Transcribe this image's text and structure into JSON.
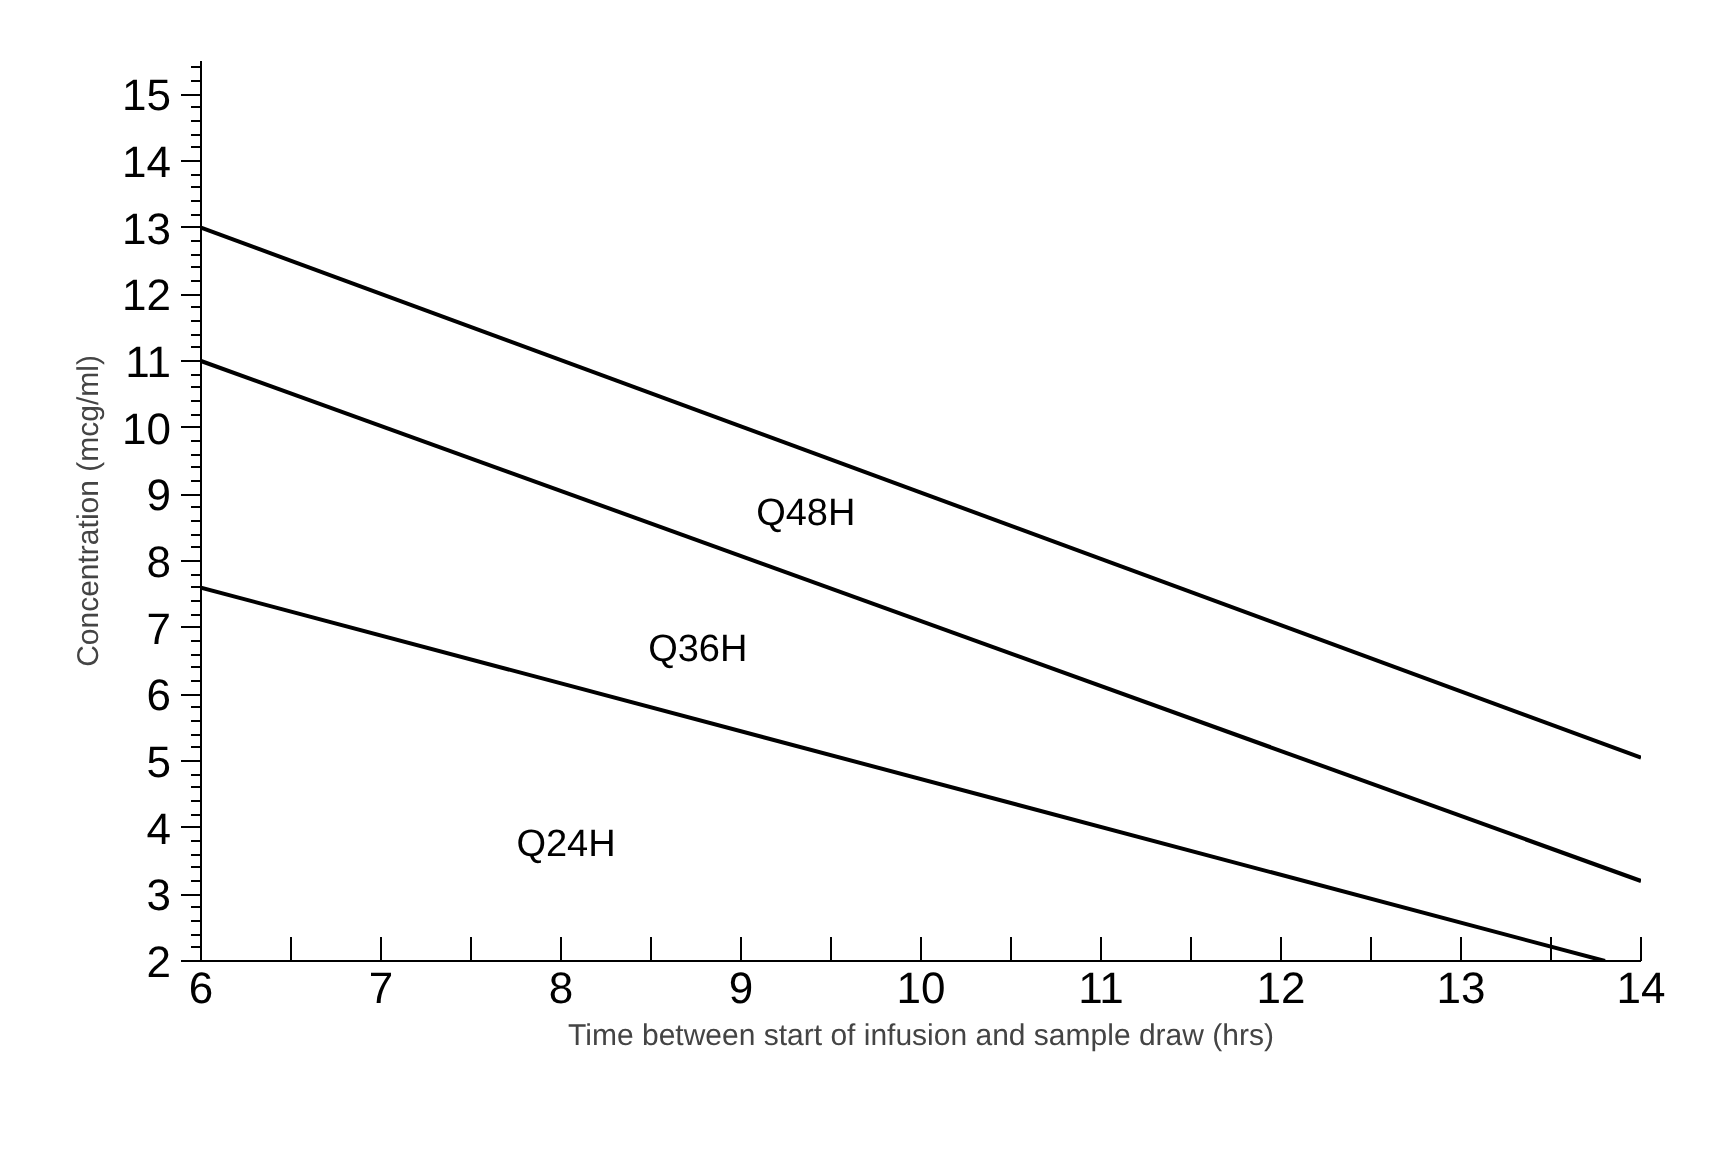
{
  "chart_data": {
    "type": "line",
    "xlabel": "Time between start of infusion and sample draw (hrs)",
    "ylabel": "Concentration (mcg/ml)",
    "series": [
      {
        "color": "#000000",
        "x": [
          6,
          14
        ],
        "values": [
          13,
          5.05
        ]
      },
      {
        "color": "#000000",
        "x": [
          6,
          14
        ],
        "values": [
          11,
          3.2
        ]
      },
      {
        "color": "#000000",
        "x": [
          6,
          13.8
        ],
        "values": [
          7.6,
          2
        ]
      }
    ],
    "annotations": [
      "Q48H",
      "Q36H",
      "Q24H"
    ],
    "xlim": [
      6,
      14
    ],
    "ylim": [
      2,
      15.5
    ],
    "xticks": [
      6,
      {
        "value": 6.5,
        "label": null
      },
      7,
      {
        "value": 7.5,
        "label": null
      },
      8,
      {
        "value": 8.5,
        "label": null
      },
      9,
      {
        "value": 9.5,
        "label": null
      },
      10,
      {
        "value": 10.5,
        "label": null
      },
      11,
      {
        "value": 11.5,
        "label": null
      },
      12,
      {
        "value": 12.5,
        "label": null
      },
      13,
      {
        "value": 13.5,
        "label": null
      },
      14
    ],
    "yticks": [
      2,
      3,
      4,
      5,
      6,
      7,
      8,
      9,
      10,
      11,
      12,
      13,
      14,
      15
    ],
    "line_style": "solid"
  }
}
